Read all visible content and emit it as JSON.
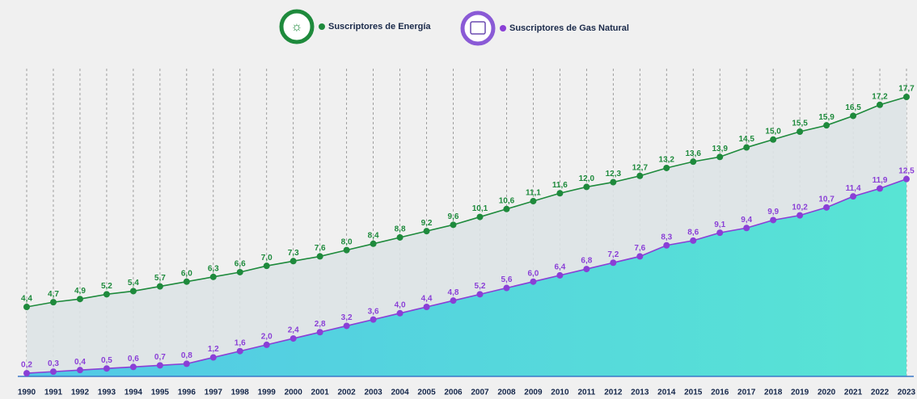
{
  "chart_data": {
    "type": "line",
    "categories": [
      "1990",
      "1991",
      "1992",
      "1993",
      "1994",
      "1995",
      "1996",
      "1997",
      "1998",
      "1999",
      "2000",
      "2001",
      "2002",
      "2003",
      "2004",
      "2005",
      "2006",
      "2007",
      "2008",
      "2009",
      "2010",
      "2011",
      "2012",
      "2013",
      "2014",
      "2015",
      "2016",
      "2017",
      "2018",
      "2019",
      "2020",
      "2021",
      "2022",
      "2023"
    ],
    "series": [
      {
        "name": "Suscriptores de Energía",
        "color": "#1e8a3c",
        "values": [
          4.4,
          4.7,
          4.9,
          5.2,
          5.4,
          5.7,
          6.0,
          6.3,
          6.6,
          7.0,
          7.3,
          7.6,
          8.0,
          8.4,
          8.8,
          9.2,
          9.6,
          10.1,
          10.6,
          11.1,
          11.6,
          12.0,
          12.3,
          12.7,
          13.2,
          13.6,
          13.9,
          14.5,
          15.0,
          15.5,
          15.9,
          16.5,
          17.2,
          17.7
        ],
        "value_labels": [
          "4,4",
          "4,7",
          "4,9",
          "5,2",
          "5,4",
          "5,7",
          "6,0",
          "6,3",
          "6,6",
          "7,0",
          "7,3",
          "7,6",
          "8,0",
          "8,4",
          "8,8",
          "9,2",
          "9,6",
          "10,1",
          "10,6",
          "11,1",
          "11,6",
          "12,0",
          "12,3",
          "12,7",
          "13,2",
          "13,6",
          "13,9",
          "14,5",
          "15,0",
          "15,5",
          "15,9",
          "16,5",
          "17,2",
          "17,7"
        ]
      },
      {
        "name": "Suscriptores de Gas Natural",
        "color": "#8a3fd6",
        "values": [
          0.2,
          0.3,
          0.4,
          0.5,
          0.6,
          0.7,
          0.8,
          1.2,
          1.6,
          2.0,
          2.4,
          2.8,
          3.2,
          3.6,
          4.0,
          4.4,
          4.8,
          5.2,
          5.6,
          6.0,
          6.4,
          6.8,
          7.2,
          7.6,
          8.3,
          8.6,
          9.1,
          9.4,
          9.9,
          10.2,
          10.7,
          11.4,
          11.9,
          12.5
        ],
        "value_labels": [
          "0,2",
          "0,3",
          "0,4",
          "0,5",
          "0,6",
          "0,7",
          "0,8",
          "1,2",
          "1,6",
          "2,0",
          "2,4",
          "2,8",
          "3,2",
          "3,6",
          "4,0",
          "4,4",
          "4,8",
          "5,2",
          "5,6",
          "6,0",
          "6,4",
          "6,8",
          "7,2",
          "7,6",
          "8,3",
          "8,6",
          "9,1",
          "9,4",
          "9,9",
          "10,2",
          "10,7",
          "11,4",
          "11,9",
          "12,5"
        ]
      }
    ],
    "grid": true
  }
}
